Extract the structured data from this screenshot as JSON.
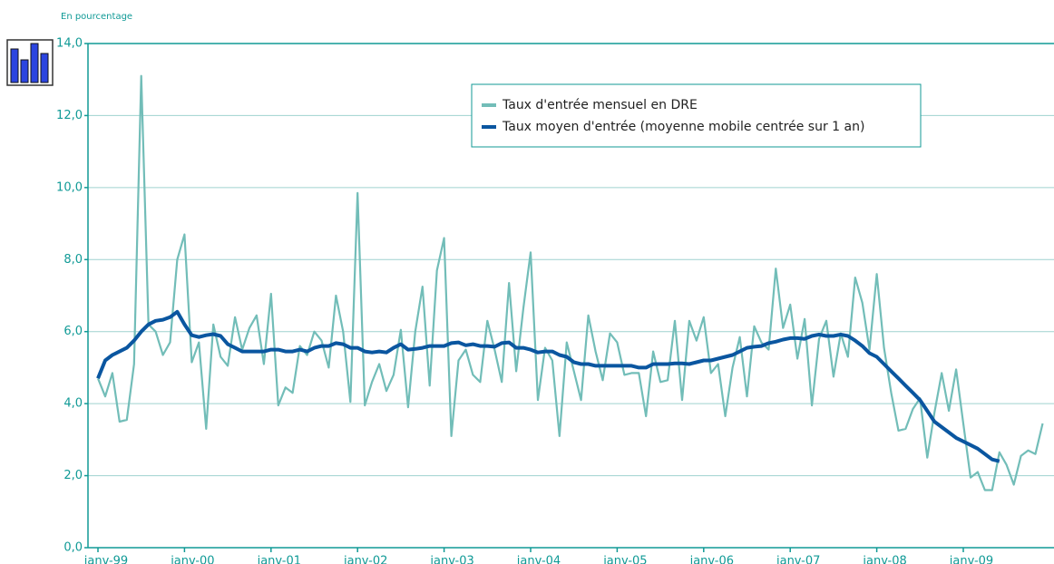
{
  "chart_data": {
    "type": "line",
    "ylabel": "En pourcentage",
    "categories": [
      "janv-99",
      null,
      null,
      null,
      null,
      null,
      null,
      null,
      null,
      null,
      null,
      null,
      "janv-00",
      null,
      null,
      null,
      null,
      null,
      null,
      null,
      null,
      null,
      null,
      null,
      "janv-01",
      null,
      null,
      null,
      null,
      null,
      null,
      null,
      null,
      null,
      null,
      null,
      "janv-02",
      null,
      null,
      null,
      null,
      null,
      null,
      null,
      null,
      null,
      null,
      null,
      "janv-03",
      null,
      null,
      null,
      null,
      null,
      null,
      null,
      null,
      null,
      null,
      null,
      "janv-04",
      null,
      null,
      null,
      null,
      null,
      null,
      null,
      null,
      null,
      null,
      null,
      "janv-05",
      null,
      null,
      null,
      null,
      null,
      null,
      null,
      null,
      null,
      null,
      null,
      "janv-06",
      null,
      null,
      null,
      null,
      null,
      null,
      null,
      null,
      null,
      null,
      null,
      "janv-07",
      null,
      null,
      null,
      null,
      null,
      null,
      null,
      null,
      null,
      null,
      null,
      "janv-08",
      null,
      null,
      null,
      null,
      null,
      null,
      null,
      null,
      null,
      null,
      null,
      "janv-09",
      null,
      null,
      null,
      null,
      null,
      null,
      null,
      null,
      null,
      null,
      null
    ],
    "series": [
      {
        "name": "Taux d'entrée mensuel en DRE",
        "color": "#72bdb8",
        "width": 2.2,
        "values": [
          4.7,
          4.2,
          4.85,
          3.5,
          3.55,
          5.1,
          13.1,
          6.2,
          6.0,
          5.35,
          5.7,
          8.0,
          8.7,
          5.15,
          5.7,
          3.3,
          6.2,
          5.3,
          5.05,
          6.4,
          5.5,
          6.1,
          6.45,
          5.1,
          7.05,
          3.95,
          4.45,
          4.3,
          5.6,
          5.35,
          6.0,
          5.75,
          5.0,
          7.0,
          6.0,
          4.05,
          9.85,
          3.95,
          4.6,
          5.1,
          4.35,
          4.8,
          6.05,
          3.9,
          6.0,
          7.25,
          4.5,
          7.7,
          8.6,
          3.1,
          5.2,
          5.5,
          4.8,
          4.6,
          6.3,
          5.5,
          4.6,
          7.35,
          4.9,
          6.65,
          8.2,
          4.1,
          5.55,
          5.2,
          3.1,
          5.7,
          4.9,
          4.1,
          6.45,
          5.45,
          4.65,
          5.95,
          5.7,
          4.8,
          4.85,
          4.85,
          3.65,
          5.45,
          4.6,
          4.65,
          6.3,
          4.1,
          6.3,
          5.75,
          6.4,
          4.85,
          5.1,
          3.65,
          5.0,
          5.85,
          4.2,
          6.15,
          5.7,
          5.5,
          7.75,
          6.1,
          6.75,
          5.25,
          6.35,
          3.95,
          5.8,
          6.3,
          4.75,
          5.95,
          5.3,
          7.5,
          6.8,
          5.5,
          7.6,
          5.55,
          4.3,
          3.25,
          3.3,
          3.85,
          4.15,
          2.5,
          3.75,
          4.85,
          3.8,
          4.95,
          3.45,
          1.95,
          2.1,
          1.6,
          1.6,
          2.65,
          2.3,
          1.75,
          2.55,
          2.7,
          2.6,
          3.45
        ]
      },
      {
        "name": "Taux moyen d'entrée (moyenne mobile centrée sur 1 an)",
        "color": "#0a56a0",
        "width": 4,
        "values": [
          4.7,
          5.2,
          5.35,
          5.45,
          5.55,
          5.75,
          6.0,
          6.2,
          6.3,
          6.33,
          6.4,
          6.55,
          6.2,
          5.9,
          5.85,
          5.9,
          5.93,
          5.88,
          5.65,
          5.55,
          5.45,
          5.45,
          5.45,
          5.45,
          5.5,
          5.5,
          5.45,
          5.45,
          5.5,
          5.45,
          5.55,
          5.6,
          5.6,
          5.68,
          5.65,
          5.55,
          5.55,
          5.45,
          5.42,
          5.45,
          5.42,
          5.55,
          5.65,
          5.5,
          5.52,
          5.55,
          5.6,
          5.6,
          5.6,
          5.68,
          5.7,
          5.62,
          5.65,
          5.6,
          5.6,
          5.58,
          5.68,
          5.7,
          5.55,
          5.55,
          5.5,
          5.42,
          5.45,
          5.45,
          5.35,
          5.3,
          5.15,
          5.1,
          5.1,
          5.05,
          5.05,
          5.05,
          5.05,
          5.05,
          5.05,
          5.0,
          5.0,
          5.1,
          5.1,
          5.1,
          5.12,
          5.12,
          5.1,
          5.15,
          5.2,
          5.2,
          5.25,
          5.3,
          5.35,
          5.45,
          5.55,
          5.58,
          5.6,
          5.68,
          5.72,
          5.78,
          5.82,
          5.82,
          5.8,
          5.88,
          5.92,
          5.88,
          5.88,
          5.92,
          5.88,
          5.75,
          5.6,
          5.4,
          5.3,
          5.1,
          4.9,
          4.7,
          4.5,
          4.3,
          4.1,
          3.8,
          3.5,
          3.35,
          3.2,
          3.05,
          2.95,
          2.85,
          2.75,
          2.6,
          2.45,
          2.4,
          null,
          null,
          null,
          null,
          null,
          null
        ]
      }
    ],
    "ylim": [
      0,
      14
    ],
    "yticks": [
      {
        "value": 0,
        "label": "0,0"
      },
      {
        "value": 2,
        "label": "2,0"
      },
      {
        "value": 4,
        "label": "4,0"
      },
      {
        "value": 6,
        "label": "6,0"
      },
      {
        "value": 8,
        "label": "8,0"
      },
      {
        "value": 10,
        "label": "10,0"
      },
      {
        "value": 12,
        "label": "12,0"
      },
      {
        "value": 14,
        "label": "14,0"
      }
    ],
    "grid": true
  }
}
